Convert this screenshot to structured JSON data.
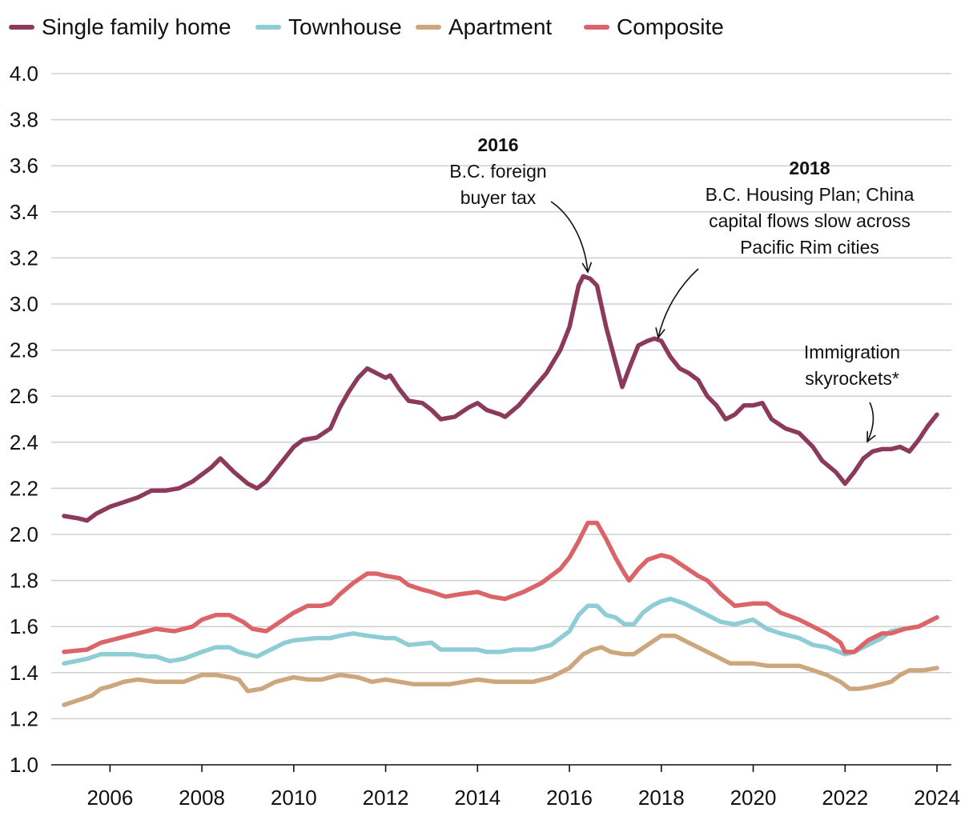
{
  "chart_data": {
    "type": "line",
    "title": "",
    "xlabel": "",
    "ylabel": "",
    "xlim": [
      2005.0,
      2024.0
    ],
    "ylim": [
      1.0,
      4.0
    ],
    "yticks": [
      "1.0",
      "1.2",
      "1.4",
      "1.6",
      "1.8",
      "2.0",
      "2.2",
      "2.4",
      "2.6",
      "2.8",
      "3.0",
      "3.2",
      "3.4",
      "3.6",
      "3.8",
      "4.0"
    ],
    "xticks": [
      "2006",
      "2008",
      "2010",
      "2012",
      "2014",
      "2016",
      "2018",
      "2020",
      "2022",
      "2024"
    ],
    "grid": true,
    "legend": {
      "placement": "top-left"
    },
    "series": [
      {
        "name": "Single family home",
        "color": "#8B3A5C",
        "points": [
          [
            2005.0,
            2.08
          ],
          [
            2005.3,
            2.07
          ],
          [
            2005.5,
            2.06
          ],
          [
            2005.7,
            2.09
          ],
          [
            2006.0,
            2.12
          ],
          [
            2006.3,
            2.14
          ],
          [
            2006.6,
            2.16
          ],
          [
            2006.9,
            2.19
          ],
          [
            2007.2,
            2.19
          ],
          [
            2007.5,
            2.2
          ],
          [
            2007.8,
            2.23
          ],
          [
            2008.0,
            2.26
          ],
          [
            2008.2,
            2.29
          ],
          [
            2008.4,
            2.33
          ],
          [
            2008.5,
            2.31
          ],
          [
            2008.7,
            2.27
          ],
          [
            2009.0,
            2.22
          ],
          [
            2009.2,
            2.2
          ],
          [
            2009.4,
            2.23
          ],
          [
            2009.6,
            2.28
          ],
          [
            2009.8,
            2.33
          ],
          [
            2010.0,
            2.38
          ],
          [
            2010.2,
            2.41
          ],
          [
            2010.5,
            2.42
          ],
          [
            2010.8,
            2.46
          ],
          [
            2011.0,
            2.55
          ],
          [
            2011.2,
            2.62
          ],
          [
            2011.4,
            2.68
          ],
          [
            2011.6,
            2.72
          ],
          [
            2011.8,
            2.7
          ],
          [
            2012.0,
            2.68
          ],
          [
            2012.1,
            2.69
          ],
          [
            2012.3,
            2.63
          ],
          [
            2012.5,
            2.58
          ],
          [
            2012.8,
            2.57
          ],
          [
            2013.0,
            2.54
          ],
          [
            2013.2,
            2.5
          ],
          [
            2013.5,
            2.51
          ],
          [
            2013.8,
            2.55
          ],
          [
            2014.0,
            2.57
          ],
          [
            2014.2,
            2.54
          ],
          [
            2014.5,
            2.52
          ],
          [
            2014.6,
            2.51
          ],
          [
            2014.9,
            2.56
          ],
          [
            2015.2,
            2.63
          ],
          [
            2015.5,
            2.7
          ],
          [
            2015.8,
            2.8
          ],
          [
            2016.0,
            2.9
          ],
          [
            2016.2,
            3.08
          ],
          [
            2016.3,
            3.12
          ],
          [
            2016.45,
            3.11
          ],
          [
            2016.6,
            3.08
          ],
          [
            2016.8,
            2.9
          ],
          [
            2017.0,
            2.75
          ],
          [
            2017.15,
            2.64
          ],
          [
            2017.3,
            2.72
          ],
          [
            2017.5,
            2.82
          ],
          [
            2017.7,
            2.84
          ],
          [
            2017.85,
            2.85
          ],
          [
            2018.0,
            2.84
          ],
          [
            2018.2,
            2.77
          ],
          [
            2018.4,
            2.72
          ],
          [
            2018.6,
            2.7
          ],
          [
            2018.8,
            2.67
          ],
          [
            2019.0,
            2.6
          ],
          [
            2019.2,
            2.56
          ],
          [
            2019.4,
            2.5
          ],
          [
            2019.6,
            2.52
          ],
          [
            2019.8,
            2.56
          ],
          [
            2020.0,
            2.56
          ],
          [
            2020.2,
            2.57
          ],
          [
            2020.4,
            2.5
          ],
          [
            2020.7,
            2.46
          ],
          [
            2021.0,
            2.44
          ],
          [
            2021.3,
            2.38
          ],
          [
            2021.5,
            2.32
          ],
          [
            2021.8,
            2.27
          ],
          [
            2022.0,
            2.22
          ],
          [
            2022.2,
            2.27
          ],
          [
            2022.4,
            2.33
          ],
          [
            2022.6,
            2.36
          ],
          [
            2022.8,
            2.37
          ],
          [
            2023.0,
            2.37
          ],
          [
            2023.2,
            2.38
          ],
          [
            2023.4,
            2.36
          ],
          [
            2023.6,
            2.41
          ],
          [
            2023.8,
            2.47
          ],
          [
            2024.0,
            2.52
          ]
        ]
      },
      {
        "name": "Townhouse",
        "color": "#8ECDD5",
        "points": [
          [
            2005.0,
            1.44
          ],
          [
            2005.5,
            1.46
          ],
          [
            2005.8,
            1.48
          ],
          [
            2006.0,
            1.48
          ],
          [
            2006.5,
            1.48
          ],
          [
            2006.8,
            1.47
          ],
          [
            2007.0,
            1.47
          ],
          [
            2007.3,
            1.45
          ],
          [
            2007.6,
            1.46
          ],
          [
            2008.0,
            1.49
          ],
          [
            2008.3,
            1.51
          ],
          [
            2008.6,
            1.51
          ],
          [
            2008.8,
            1.49
          ],
          [
            2009.2,
            1.47
          ],
          [
            2009.5,
            1.5
          ],
          [
            2009.8,
            1.53
          ],
          [
            2010.0,
            1.54
          ],
          [
            2010.5,
            1.55
          ],
          [
            2010.8,
            1.55
          ],
          [
            2011.0,
            1.56
          ],
          [
            2011.3,
            1.57
          ],
          [
            2011.6,
            1.56
          ],
          [
            2012.0,
            1.55
          ],
          [
            2012.2,
            1.55
          ],
          [
            2012.5,
            1.52
          ],
          [
            2013.0,
            1.53
          ],
          [
            2013.2,
            1.5
          ],
          [
            2013.5,
            1.5
          ],
          [
            2014.0,
            1.5
          ],
          [
            2014.2,
            1.49
          ],
          [
            2014.5,
            1.49
          ],
          [
            2014.8,
            1.5
          ],
          [
            2015.2,
            1.5
          ],
          [
            2015.6,
            1.52
          ],
          [
            2016.0,
            1.58
          ],
          [
            2016.2,
            1.65
          ],
          [
            2016.4,
            1.69
          ],
          [
            2016.6,
            1.69
          ],
          [
            2016.8,
            1.65
          ],
          [
            2017.0,
            1.64
          ],
          [
            2017.2,
            1.61
          ],
          [
            2017.4,
            1.61
          ],
          [
            2017.6,
            1.66
          ],
          [
            2017.8,
            1.69
          ],
          [
            2018.0,
            1.71
          ],
          [
            2018.2,
            1.72
          ],
          [
            2018.5,
            1.7
          ],
          [
            2018.8,
            1.67
          ],
          [
            2019.0,
            1.65
          ],
          [
            2019.3,
            1.62
          ],
          [
            2019.6,
            1.61
          ],
          [
            2020.0,
            1.63
          ],
          [
            2020.3,
            1.59
          ],
          [
            2020.6,
            1.57
          ],
          [
            2021.0,
            1.55
          ],
          [
            2021.3,
            1.52
          ],
          [
            2021.6,
            1.51
          ],
          [
            2022.0,
            1.48
          ],
          [
            2022.2,
            1.49
          ],
          [
            2022.5,
            1.52
          ],
          [
            2022.8,
            1.55
          ],
          [
            2023.0,
            1.58
          ],
          [
            2023.3,
            1.59
          ],
          [
            2023.6,
            1.6
          ],
          [
            2024.0,
            1.64
          ]
        ]
      },
      {
        "name": "Apartment",
        "color": "#CCA77E",
        "points": [
          [
            2005.0,
            1.26
          ],
          [
            2005.3,
            1.28
          ],
          [
            2005.6,
            1.3
          ],
          [
            2005.8,
            1.33
          ],
          [
            2006.0,
            1.34
          ],
          [
            2006.3,
            1.36
          ],
          [
            2006.6,
            1.37
          ],
          [
            2007.0,
            1.36
          ],
          [
            2007.3,
            1.36
          ],
          [
            2007.6,
            1.36
          ],
          [
            2008.0,
            1.39
          ],
          [
            2008.3,
            1.39
          ],
          [
            2008.6,
            1.38
          ],
          [
            2008.8,
            1.37
          ],
          [
            2009.0,
            1.32
          ],
          [
            2009.3,
            1.33
          ],
          [
            2009.6,
            1.36
          ],
          [
            2010.0,
            1.38
          ],
          [
            2010.3,
            1.37
          ],
          [
            2010.6,
            1.37
          ],
          [
            2010.8,
            1.38
          ],
          [
            2011.0,
            1.39
          ],
          [
            2011.4,
            1.38
          ],
          [
            2011.7,
            1.36
          ],
          [
            2012.0,
            1.37
          ],
          [
            2012.3,
            1.36
          ],
          [
            2012.6,
            1.35
          ],
          [
            2013.0,
            1.35
          ],
          [
            2013.4,
            1.35
          ],
          [
            2013.7,
            1.36
          ],
          [
            2014.0,
            1.37
          ],
          [
            2014.4,
            1.36
          ],
          [
            2014.8,
            1.36
          ],
          [
            2015.2,
            1.36
          ],
          [
            2015.6,
            1.38
          ],
          [
            2016.0,
            1.42
          ],
          [
            2016.3,
            1.48
          ],
          [
            2016.5,
            1.5
          ],
          [
            2016.7,
            1.51
          ],
          [
            2016.9,
            1.49
          ],
          [
            2017.2,
            1.48
          ],
          [
            2017.4,
            1.48
          ],
          [
            2017.7,
            1.52
          ],
          [
            2018.0,
            1.56
          ],
          [
            2018.3,
            1.56
          ],
          [
            2018.6,
            1.53
          ],
          [
            2018.9,
            1.5
          ],
          [
            2019.2,
            1.47
          ],
          [
            2019.5,
            1.44
          ],
          [
            2019.8,
            1.44
          ],
          [
            2020.0,
            1.44
          ],
          [
            2020.3,
            1.43
          ],
          [
            2020.6,
            1.43
          ],
          [
            2021.0,
            1.43
          ],
          [
            2021.3,
            1.41
          ],
          [
            2021.6,
            1.39
          ],
          [
            2021.9,
            1.36
          ],
          [
            2022.1,
            1.33
          ],
          [
            2022.3,
            1.33
          ],
          [
            2022.6,
            1.34
          ],
          [
            2023.0,
            1.36
          ],
          [
            2023.2,
            1.39
          ],
          [
            2023.4,
            1.41
          ],
          [
            2023.7,
            1.41
          ],
          [
            2024.0,
            1.42
          ]
        ]
      },
      {
        "name": "Composite",
        "color": "#DB6468",
        "points": [
          [
            2005.0,
            1.49
          ],
          [
            2005.5,
            1.5
          ],
          [
            2005.8,
            1.53
          ],
          [
            2006.0,
            1.54
          ],
          [
            2006.4,
            1.56
          ],
          [
            2006.8,
            1.58
          ],
          [
            2007.0,
            1.59
          ],
          [
            2007.4,
            1.58
          ],
          [
            2007.8,
            1.6
          ],
          [
            2008.0,
            1.63
          ],
          [
            2008.3,
            1.65
          ],
          [
            2008.6,
            1.65
          ],
          [
            2008.9,
            1.62
          ],
          [
            2009.1,
            1.59
          ],
          [
            2009.4,
            1.58
          ],
          [
            2009.7,
            1.62
          ],
          [
            2010.0,
            1.66
          ],
          [
            2010.3,
            1.69
          ],
          [
            2010.6,
            1.69
          ],
          [
            2010.8,
            1.7
          ],
          [
            2011.0,
            1.74
          ],
          [
            2011.3,
            1.79
          ],
          [
            2011.6,
            1.83
          ],
          [
            2011.8,
            1.83
          ],
          [
            2012.0,
            1.82
          ],
          [
            2012.3,
            1.81
          ],
          [
            2012.5,
            1.78
          ],
          [
            2012.8,
            1.76
          ],
          [
            2013.0,
            1.75
          ],
          [
            2013.3,
            1.73
          ],
          [
            2013.6,
            1.74
          ],
          [
            2014.0,
            1.75
          ],
          [
            2014.3,
            1.73
          ],
          [
            2014.6,
            1.72
          ],
          [
            2015.0,
            1.75
          ],
          [
            2015.4,
            1.79
          ],
          [
            2015.8,
            1.85
          ],
          [
            2016.0,
            1.9
          ],
          [
            2016.2,
            1.97
          ],
          [
            2016.4,
            2.05
          ],
          [
            2016.6,
            2.05
          ],
          [
            2016.8,
            1.98
          ],
          [
            2017.0,
            1.9
          ],
          [
            2017.2,
            1.83
          ],
          [
            2017.3,
            1.8
          ],
          [
            2017.5,
            1.85
          ],
          [
            2017.7,
            1.89
          ],
          [
            2018.0,
            1.91
          ],
          [
            2018.2,
            1.9
          ],
          [
            2018.5,
            1.86
          ],
          [
            2018.8,
            1.82
          ],
          [
            2019.0,
            1.8
          ],
          [
            2019.3,
            1.74
          ],
          [
            2019.6,
            1.69
          ],
          [
            2020.0,
            1.7
          ],
          [
            2020.3,
            1.7
          ],
          [
            2020.6,
            1.66
          ],
          [
            2021.0,
            1.63
          ],
          [
            2021.3,
            1.6
          ],
          [
            2021.6,
            1.57
          ],
          [
            2021.9,
            1.53
          ],
          [
            2022.0,
            1.49
          ],
          [
            2022.2,
            1.49
          ],
          [
            2022.5,
            1.54
          ],
          [
            2022.8,
            1.57
          ],
          [
            2023.0,
            1.57
          ],
          [
            2023.3,
            1.59
          ],
          [
            2023.6,
            1.6
          ],
          [
            2024.0,
            1.64
          ]
        ]
      }
    ],
    "annotations": [
      {
        "id": "a2016",
        "year": "2016",
        "lines": [
          "B.C. foreign",
          "buyer tax"
        ],
        "target": [
          2016.3,
          3.12
        ]
      },
      {
        "id": "a2018",
        "year": "2018",
        "lines": [
          "B.C. Housing Plan; China",
          "capital flows slow across",
          "Pacific Rim cities"
        ],
        "target": [
          2017.85,
          2.85
        ]
      },
      {
        "id": "aimm",
        "year": "",
        "lines": [
          "Immigration",
          "skyrockets*"
        ],
        "target": [
          2022.6,
          2.37
        ]
      }
    ]
  }
}
